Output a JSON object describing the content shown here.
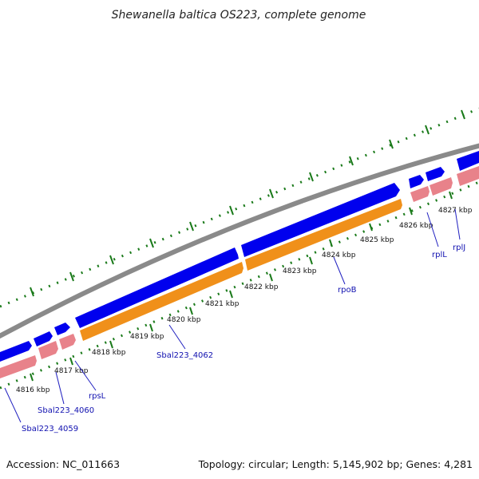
{
  "title": "Shewanella baltica OS223, complete genome",
  "footer": {
    "accession": "Accession: NC_011663",
    "summary": "Topology: circular; Length: 5,145,902 bp; Genes: 4,281"
  },
  "colors": {
    "backbone": "#8a8a8a",
    "cds": "#0000ee",
    "gene": "#e8828a",
    "gene_highlight": "#f0901a",
    "ticks": "#1a7a1a",
    "label": "#1010b0"
  },
  "scale": {
    "unit": "kbp",
    "ticks": [
      {
        "label": "4816 kbp"
      },
      {
        "label": "4817 kbp"
      },
      {
        "label": "4818 kbp"
      },
      {
        "label": "4819 kbp"
      },
      {
        "label": "4820 kbp"
      },
      {
        "label": "4821 kbp"
      },
      {
        "label": "4822 kbp"
      },
      {
        "label": "4823 kbp"
      },
      {
        "label": "4824 kbp"
      },
      {
        "label": "4825 kbp"
      },
      {
        "label": "4826 kbp"
      },
      {
        "label": "4827 kbp"
      }
    ]
  },
  "genes": [
    {
      "label": "Sbal223_4059"
    },
    {
      "label": "Sbal223_4060"
    },
    {
      "label": "rpsL"
    },
    {
      "label": "Sbal223_4062"
    },
    {
      "label": "rpoB"
    },
    {
      "label": "rplL"
    },
    {
      "label": "rplJ"
    }
  ]
}
